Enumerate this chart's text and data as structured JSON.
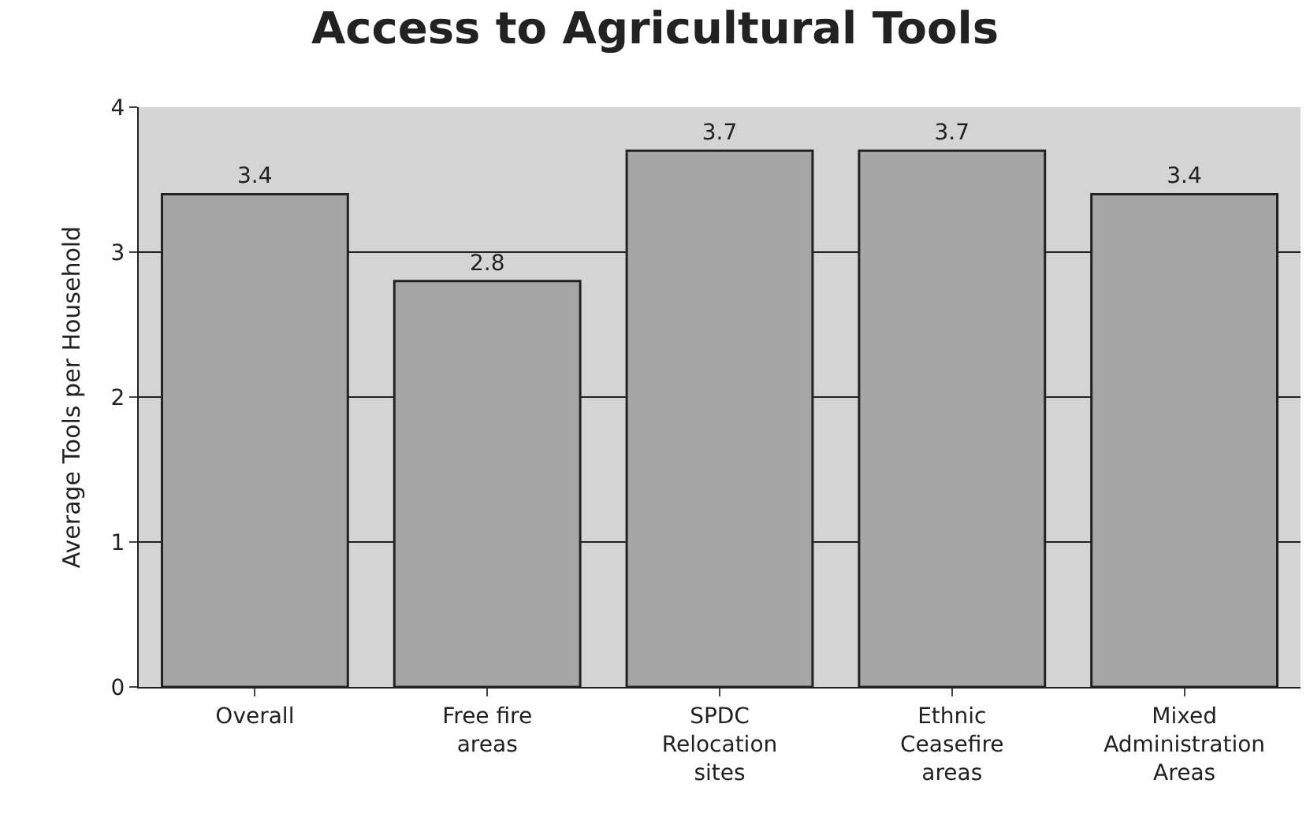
{
  "chart_data": {
    "type": "bar",
    "title": "Access to Agricultural Tools",
    "ylabel": "Average Tools per Household",
    "categories": [
      "Overall",
      "Free fire areas",
      "SPDC Relocation sites",
      "Ethnic Ceasefire areas",
      "Mixed Administration Areas"
    ],
    "values": [
      3.4,
      2.8,
      3.7,
      3.7,
      3.4
    ],
    "color": "#a6a6a6",
    "ylim": [
      0,
      4
    ],
    "yticks": [
      0,
      1,
      2,
      3,
      4
    ],
    "grid": "y",
    "data_labels": true
  }
}
